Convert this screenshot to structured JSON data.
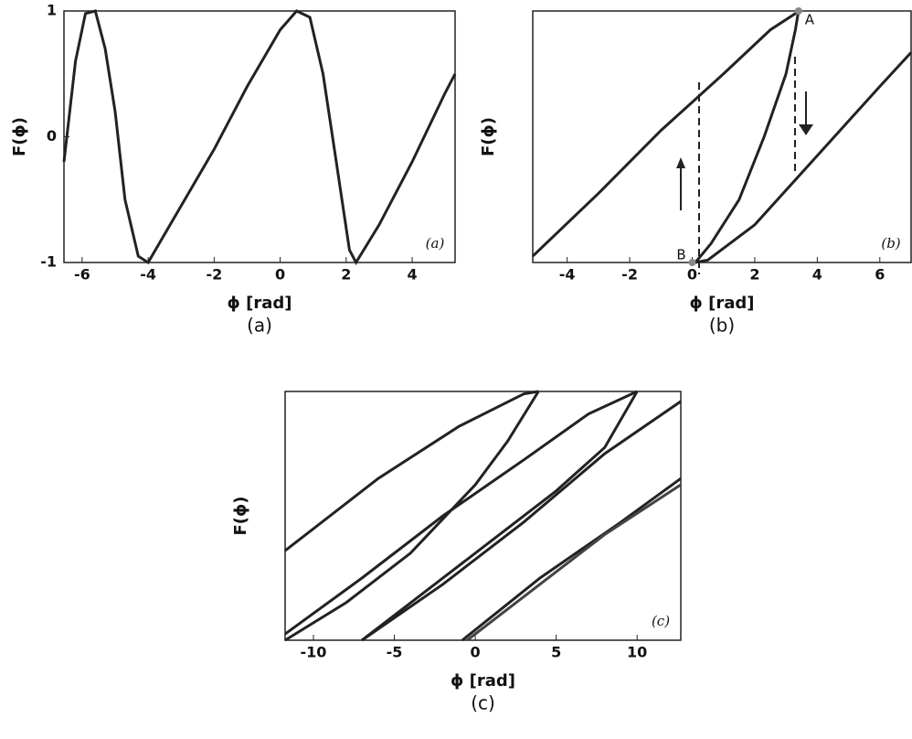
{
  "chart_data": [
    {
      "type": "line",
      "panel_label": "(a)",
      "caption": "(a)",
      "xlabel": "ϕ [rad]",
      "ylabel": "F(ϕ)",
      "xlim": [
        -6.55,
        5.3
      ],
      "ylim": [
        -1,
        1
      ],
      "xticks": [
        -6,
        -4,
        -2,
        0,
        2,
        4
      ],
      "yticks": [
        -1,
        0,
        1
      ],
      "series": [
        {
          "color": "#222",
          "x": [
            -6.55,
            -6.2,
            -5.9,
            -5.6,
            -5.3,
            -5,
            -4.7,
            -4.3,
            -4,
            -3,
            -2,
            -1,
            0,
            0.5,
            0.9,
            1.3,
            1.7,
            2.1,
            2.3,
            3,
            4,
            5,
            5.3
          ],
          "values": [
            -0.2,
            0.6,
            0.98,
            1,
            0.7,
            0.2,
            -0.5,
            -0.95,
            -1,
            -0.55,
            -0.1,
            0.4,
            0.85,
            1,
            0.95,
            0.5,
            -0.2,
            -0.9,
            -1,
            -0.7,
            -0.2,
            0.35,
            0.5
          ]
        }
      ],
      "annotations": []
    },
    {
      "type": "line",
      "panel_label": "(b)",
      "caption": "(b)",
      "xlabel": "ϕ [rad]",
      "ylabel": "F(ϕ)",
      "xlim": [
        -5.1,
        7
      ],
      "ylim": [
        -1,
        1
      ],
      "xticks": [
        -4,
        -2,
        0,
        2,
        4,
        6
      ],
      "series": [
        {
          "color": "#222",
          "x": [
            -5.1,
            -3,
            -1,
            1,
            2.5,
            3.3,
            3.4,
            3.3,
            3.0,
            2.3,
            1.5,
            0.6,
            0.1,
            0.5,
            2,
            4,
            6,
            7
          ],
          "values": [
            -0.95,
            -0.45,
            0.05,
            0.5,
            0.85,
            0.98,
            1,
            0.85,
            0.5,
            0,
            -0.5,
            -0.85,
            -1,
            -0.98,
            -0.7,
            -0.15,
            0.4,
            0.67
          ]
        }
      ],
      "annotations": [
        {
          "text": "A",
          "x": 3.4,
          "y": 1
        },
        {
          "text": "B",
          "x": 0,
          "y": -1
        }
      ]
    },
    {
      "type": "line",
      "panel_label": "(c)",
      "caption": "(c)",
      "xlabel": "ϕ [rad]",
      "ylabel": "F(ϕ)",
      "xlim": [
        -11.75,
        12.7
      ],
      "ylim": [
        -1,
        1
      ],
      "xticks": [
        -10,
        -5,
        0,
        5,
        10
      ],
      "series": [
        {
          "color": "#222",
          "x": [
            -11.75,
            -6,
            -1,
            3,
            3.9
          ],
          "values": [
            -0.28,
            0.3,
            0.72,
            0.98,
            1
          ]
        },
        {
          "color": "#222",
          "x": [
            3.9,
            2,
            0,
            -4,
            -8,
            -11.75
          ],
          "values": [
            1,
            0.6,
            0.25,
            -0.3,
            -0.7,
            -1
          ]
        },
        {
          "color": "#222",
          "x": [
            -11.75,
            -7,
            -2,
            3,
            7,
            10
          ],
          "values": [
            -0.95,
            -0.5,
            0,
            0.45,
            0.82,
            1
          ]
        },
        {
          "color": "#222",
          "x": [
            10,
            8,
            5,
            0,
            -4,
            -7
          ],
          "values": [
            1,
            0.55,
            0.2,
            -0.3,
            -0.7,
            -1
          ]
        },
        {
          "color": "#222",
          "x": [
            -7,
            -2,
            3,
            8,
            12.7
          ],
          "values": [
            -1,
            -0.55,
            -0.05,
            0.5,
            0.92
          ]
        },
        {
          "color": "#222",
          "x": [
            -0.8,
            4,
            9,
            12.7
          ],
          "values": [
            -1,
            -0.5,
            -0.05,
            0.3
          ]
        },
        {
          "color": "#444",
          "x": [
            -0.5,
            4,
            8,
            12.7
          ],
          "values": [
            -1,
            -0.55,
            -0.15,
            0.25
          ]
        }
      ],
      "annotations": []
    }
  ]
}
